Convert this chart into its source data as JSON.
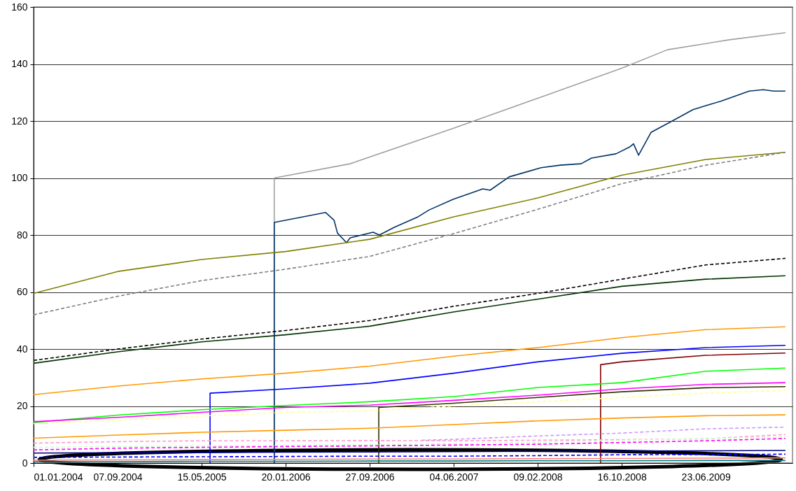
{
  "chart_data": {
    "type": "line",
    "grid": "y",
    "x": [
      "2004-01-01",
      "2004-09-07",
      "2005-05-15",
      "2006-01-20",
      "2006-09-27",
      "2007-06-04",
      "2008-02-09",
      "2008-10-16",
      "2009-06-23",
      "2010-02-15"
    ],
    "xlim": [
      "2004-01-01",
      "2010-03-08"
    ],
    "xticks": [
      {
        "value": "2004-01-01",
        "label": "01.01.2004"
      },
      {
        "value": "2004-09-07",
        "label": "07.09.2004"
      },
      {
        "value": "2005-05-15",
        "label": "15.05.2005"
      },
      {
        "value": "2006-01-20",
        "label": "20.01.2006"
      },
      {
        "value": "2006-09-27",
        "label": "27.09.2006"
      },
      {
        "value": "2007-06-04",
        "label": "04.06.2007"
      },
      {
        "value": "2008-02-09",
        "label": "09.02.2008"
      },
      {
        "value": "2008-10-16",
        "label": "16.10.2008"
      },
      {
        "value": "2009-06-23",
        "label": "23.06.2009"
      }
    ],
    "ylim": [
      0,
      160
    ],
    "yticks": [
      0,
      20,
      40,
      60,
      80,
      100,
      120,
      140,
      160
    ],
    "series": [
      {
        "color": "#a0a0a0",
        "x": [
          "2005-12-17",
          "2005-12-17",
          "2006-07-31",
          "2007-06-04",
          "2008-02-09",
          "2008-10-16",
          "2009-03-01",
          "2009-09-01",
          "2010-02-15"
        ],
        "values": [
          0,
          100,
          105,
          117.5,
          128,
          138.5,
          145,
          148.5,
          151
        ]
      },
      {
        "color": "#003366",
        "x": [
          "2005-12-17",
          "2005-12-17",
          "2006-05-19",
          "2006-06-13",
          "2006-06-23",
          "2006-07-20",
          "2006-07-31",
          "2006-10-07",
          "2006-10-26",
          "2006-12-09",
          "2007-02-18",
          "2007-03-23",
          "2007-06-02",
          "2007-08-30",
          "2007-09-20",
          "2007-11-16",
          "2008-02-19",
          "2008-04-16",
          "2008-06-17",
          "2008-07-18",
          "2008-09-29",
          "2008-11-10",
          "2008-11-20",
          "2008-12-05",
          "2009-01-11",
          "2009-03-15",
          "2009-05-16",
          "2009-06-27",
          "2009-08-08",
          "2009-10-30",
          "2009-12-11",
          "2010-01-11",
          "2010-02-15"
        ],
        "values": [
          0,
          84.4,
          87.9,
          85.2,
          80.7,
          77.3,
          79,
          81,
          80,
          82.7,
          86.4,
          88.8,
          92.5,
          96.2,
          95.7,
          100.4,
          103.6,
          104.5,
          105,
          107,
          108.5,
          111,
          112,
          108,
          116,
          120,
          124,
          125.5,
          127,
          130.5,
          131,
          130.5,
          130.5
        ]
      },
      {
        "color": "#808000",
        "values": [
          59.5,
          67.2,
          71.4,
          74.2,
          78.5,
          86.4,
          93,
          101,
          106.5,
          109
        ]
      },
      {
        "color": "#808080",
        "line_style": "dashed",
        "values": [
          52,
          58.5,
          64,
          68,
          72.5,
          80.5,
          89,
          98,
          104.5,
          109
        ]
      },
      {
        "color": "#000000",
        "line_style": "dashed",
        "values": [
          36,
          40,
          43.5,
          46.5,
          50,
          55,
          59.5,
          64.5,
          69.5,
          71.8
        ]
      },
      {
        "color": "#003300",
        "values": [
          35,
          39,
          42.5,
          45,
          48,
          53,
          57.5,
          62,
          64.5,
          65.7
        ]
      },
      {
        "color": "#ff9900",
        "values": [
          24,
          27,
          29.5,
          31.5,
          34,
          37.5,
          40.5,
          44,
          46.8,
          47.8
        ]
      },
      {
        "color": "#0000ff",
        "x": [
          "2005-06-09",
          "2005-06-09",
          "2006-01-20",
          "2006-09-27",
          "2007-06-04",
          "2008-02-09",
          "2008-10-16",
          "2009-06-23",
          "2010-02-15"
        ],
        "values": [
          0,
          24.5,
          26,
          28,
          31.5,
          35.5,
          38.5,
          40.5,
          41.3
        ]
      },
      {
        "color": "#800000",
        "x": [
          "2008-08-14",
          "2008-08-14",
          "2008-10-16",
          "2009-06-23",
          "2010-02-15"
        ],
        "values": [
          0,
          34.5,
          35.5,
          37.8,
          38.6
        ]
      },
      {
        "color": "#00ff00",
        "values": [
          14.2,
          16.8,
          18.7,
          20.2,
          21.5,
          23.3,
          26.5,
          28.2,
          32.2,
          33.3
        ]
      },
      {
        "color": "#ff00ff",
        "values": [
          14.5,
          16,
          17.8,
          19.5,
          20.3,
          22,
          23.8,
          26,
          27.6,
          28.2
        ]
      },
      {
        "color": "#333300",
        "x": [
          "2006-10-24",
          "2006-10-24",
          "2007-06-04",
          "2008-02-09",
          "2008-10-16",
          "2009-06-23",
          "2010-02-15"
        ],
        "values": [
          0,
          19.5,
          21,
          23,
          25,
          26.4,
          26.8
        ]
      },
      {
        "color": "#ffff99",
        "line_style": "dashed",
        "values": [
          13.8,
          15,
          16.5,
          17.8,
          18.3,
          20,
          21.5,
          23,
          24.5,
          25.5
        ]
      },
      {
        "color": "#ff9900",
        "values": [
          8.7,
          9.8,
          10.8,
          11.5,
          12.2,
          13.5,
          14.8,
          15.8,
          16.6,
          16.9
        ]
      },
      {
        "color": "#cc99ff",
        "line_style": "dashed",
        "x": [
          "2007-03-01",
          "2007-06-04",
          "2008-02-09",
          "2008-10-16",
          "2009-06-23",
          "2010-02-15"
        ],
        "values": [
          8,
          8.3,
          9.5,
          10.5,
          12,
          12.6
        ]
      },
      {
        "color": "#ff99cc",
        "line_style": "dashed",
        "values": [
          7,
          7.5,
          7.8,
          7.8,
          7.9,
          7.8,
          8,
          8.2,
          8.5,
          10
        ]
      },
      {
        "color": "#ccffcc",
        "line_style": "dashed",
        "values": [
          5.5,
          5.8,
          6,
          6.2,
          6.4,
          6.8,
          7.3,
          8,
          8.6,
          9.2
        ]
      },
      {
        "color": "#ff00ff",
        "line_style": "dashed",
        "values": [
          4.6,
          5.2,
          5.5,
          5.8,
          6,
          6.3,
          6.6,
          7.2,
          7.8,
          8.6
        ]
      },
      {
        "color": "#000080",
        "values": [
          3.5,
          3.6,
          3.7,
          3.8,
          3.9,
          4,
          4.1,
          4.2,
          4.3,
          4.4
        ]
      },
      {
        "color": "#0000ff",
        "line_style": "dashed",
        "values": [
          2,
          2.1,
          2.2,
          2.3,
          2.4,
          2.4,
          2.6,
          2.9,
          3,
          3.1
        ]
      },
      {
        "color": "#ff8080",
        "values": [
          1,
          1.1,
          1.2,
          1.3,
          1.4,
          1.4,
          1.5,
          1.6,
          1.7,
          1.8
        ]
      },
      {
        "color": "#008080",
        "values": [
          0.5,
          0.5,
          0.6,
          0.6,
          0.7,
          0.7,
          0.8,
          0.8,
          0.9,
          0.9
        ]
      }
    ]
  }
}
